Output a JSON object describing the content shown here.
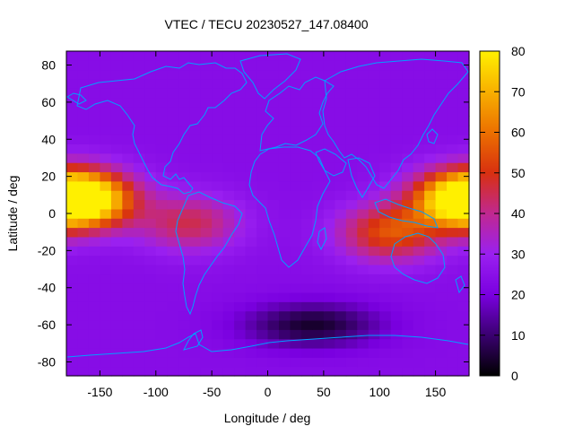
{
  "chart_data": {
    "type": "heatmap",
    "title": "VTEC / TECU 20230527_147.08400",
    "xlabel": "Longitude / deg",
    "ylabel": "Latitude / deg",
    "xlim": [
      -180,
      180
    ],
    "ylim": [
      -87.5,
      87.5
    ],
    "x_ticks": [
      -150,
      -100,
      -50,
      0,
      50,
      100,
      150
    ],
    "y_ticks": [
      -80,
      -60,
      -40,
      -20,
      0,
      20,
      40,
      60,
      80
    ],
    "colorbar": {
      "min": 0,
      "max": 80,
      "ticks": [
        0,
        10,
        20,
        30,
        40,
        50,
        60,
        70,
        80
      ],
      "palette": [
        "#000000",
        "#3a0070",
        "#7a00e0",
        "#9a20f0",
        "#c02890",
        "#d83010",
        "#ec7000",
        "#f8b000",
        "#fff000"
      ]
    },
    "grid": false,
    "coastline_color": "#00a0ff",
    "anomaly_peaks": [
      {
        "lon": -165,
        "lat": 8,
        "vtec": 72
      },
      {
        "lon": 175,
        "lat": 8,
        "vtec": 72
      },
      {
        "lon": -70,
        "lat": -5,
        "vtec": 45
      },
      {
        "lon": 110,
        "lat": -10,
        "vtec": 55
      }
    ],
    "background_vtec": 24,
    "minimum_region": {
      "lon": 40,
      "lat": -60,
      "vtec": 4
    }
  }
}
